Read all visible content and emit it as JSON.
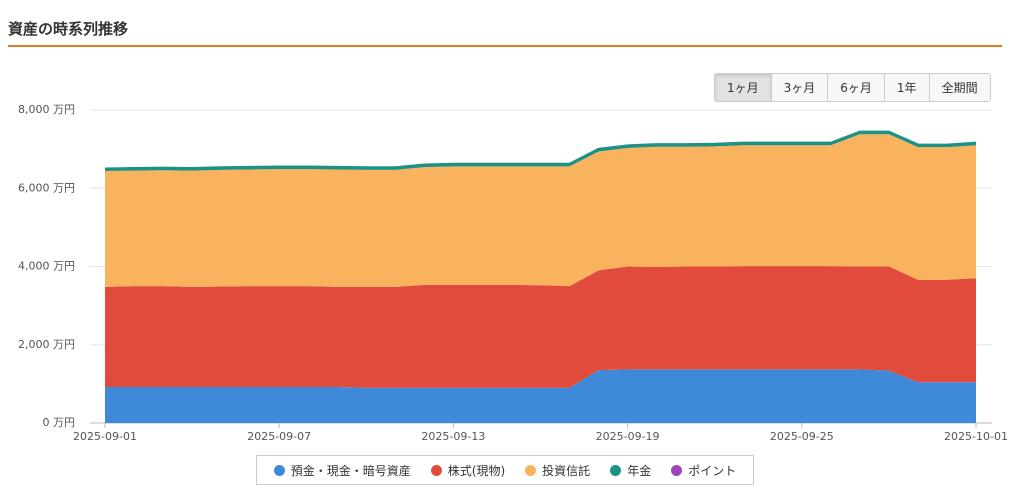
{
  "header": {
    "title": "資産の時系列推移"
  },
  "range_buttons": [
    {
      "label": "1ヶ月",
      "active": true
    },
    {
      "label": "3ヶ月",
      "active": false
    },
    {
      "label": "6ヶ月",
      "active": false
    },
    {
      "label": "1年",
      "active": false
    },
    {
      "label": "全期間",
      "active": false
    }
  ],
  "chart_data": {
    "type": "stacked_area",
    "categories": [
      "2025-09-01",
      null,
      null,
      null,
      null,
      null,
      "2025-09-07",
      null,
      null,
      null,
      null,
      null,
      "2025-09-13",
      null,
      null,
      null,
      null,
      null,
      "2025-09-19",
      null,
      null,
      null,
      null,
      null,
      "2025-09-25",
      null,
      null,
      null,
      null,
      null,
      "2025-10-01"
    ],
    "series": [
      {
        "name": "預金・現金・暗号資産",
        "color": "#3f8ad8",
        "values": [
          920,
          920,
          920,
          920,
          920,
          920,
          920,
          920,
          920,
          900,
          900,
          900,
          900,
          900,
          900,
          900,
          900,
          1350,
          1370,
          1370,
          1370,
          1370,
          1370,
          1370,
          1370,
          1370,
          1370,
          1340,
          1040,
          1040,
          1040
        ]
      },
      {
        "name": "株式(現物)",
        "color": "#e04b3c",
        "values": [
          2560,
          2580,
          2580,
          2560,
          2570,
          2580,
          2580,
          2580,
          2560,
          2580,
          2580,
          2630,
          2630,
          2630,
          2630,
          2620,
          2600,
          2550,
          2630,
          2620,
          2630,
          2630,
          2640,
          2640,
          2640,
          2640,
          2630,
          2660,
          2620,
          2620,
          2660
        ]
      },
      {
        "name": "投資信託",
        "color": "#f9b35f",
        "values": [
          2960,
          2950,
          2960,
          2970,
          2980,
          2980,
          2990,
          2990,
          3000,
          2990,
          2990,
          3010,
          3030,
          3030,
          3030,
          3040,
          3060,
          3040,
          3030,
          3070,
          3060,
          3070,
          3090,
          3090,
          3090,
          3090,
          3380,
          3380,
          3390,
          3390,
          3400
        ]
      },
      {
        "name": "年金",
        "color": "#1d9184",
        "values": [
          60,
          60,
          60,
          60,
          60,
          60,
          60,
          60,
          60,
          60,
          60,
          60,
          60,
          60,
          60,
          60,
          60,
          60,
          60,
          60,
          60,
          60,
          60,
          60,
          60,
          60,
          60,
          60,
          60,
          60,
          60
        ]
      },
      {
        "name": "ポイント",
        "color": "#9b45b8",
        "values": [
          0,
          0,
          0,
          0,
          0,
          0,
          0,
          0,
          0,
          0,
          0,
          0,
          0,
          0,
          0,
          0,
          0,
          0,
          0,
          0,
          0,
          0,
          0,
          0,
          0,
          0,
          0,
          0,
          0,
          0,
          0
        ]
      }
    ],
    "ylim": [
      0,
      8000
    ],
    "yticks": [
      {
        "value": 0,
        "label": "0 万円"
      },
      {
        "value": 2000,
        "label": "2,000 万円"
      },
      {
        "value": 4000,
        "label": "4,000 万円"
      },
      {
        "value": 6000,
        "label": "6,000 万円"
      },
      {
        "value": 8000,
        "label": "8,000 万円"
      }
    ],
    "grid": true
  }
}
